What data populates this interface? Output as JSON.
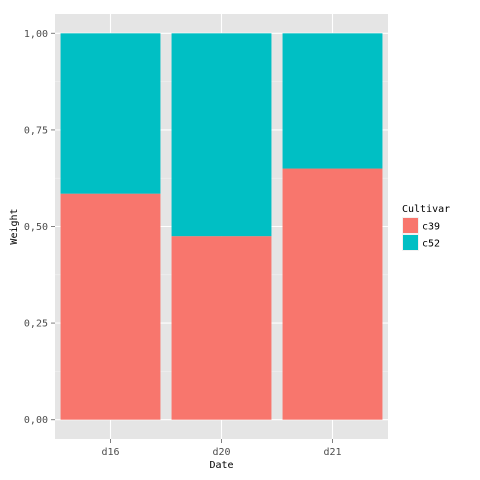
{
  "chart_data": {
    "type": "bar",
    "stacked": true,
    "categories": [
      "d16",
      "d20",
      "d21"
    ],
    "series": [
      {
        "name": "c39",
        "color": "#F8766D",
        "values": [
          0.585,
          0.475,
          0.65
        ]
      },
      {
        "name": "c52",
        "color": "#00BFC4",
        "values": [
          0.415,
          0.525,
          0.35
        ]
      }
    ],
    "xlabel": "Date",
    "ylabel": "Weight",
    "ylim": [
      0,
      1
    ],
    "yticks": [
      0,
      0.25,
      0.5,
      0.75,
      1.0
    ],
    "ytick_labels": [
      "0,00",
      "0,25",
      "0,50",
      "0,75",
      "1,00"
    ],
    "legend": {
      "title": "Cultivar",
      "position": "right"
    },
    "panel_background": "#E5E5E5",
    "grid_color": "#FFFFFF",
    "grid": true
  }
}
